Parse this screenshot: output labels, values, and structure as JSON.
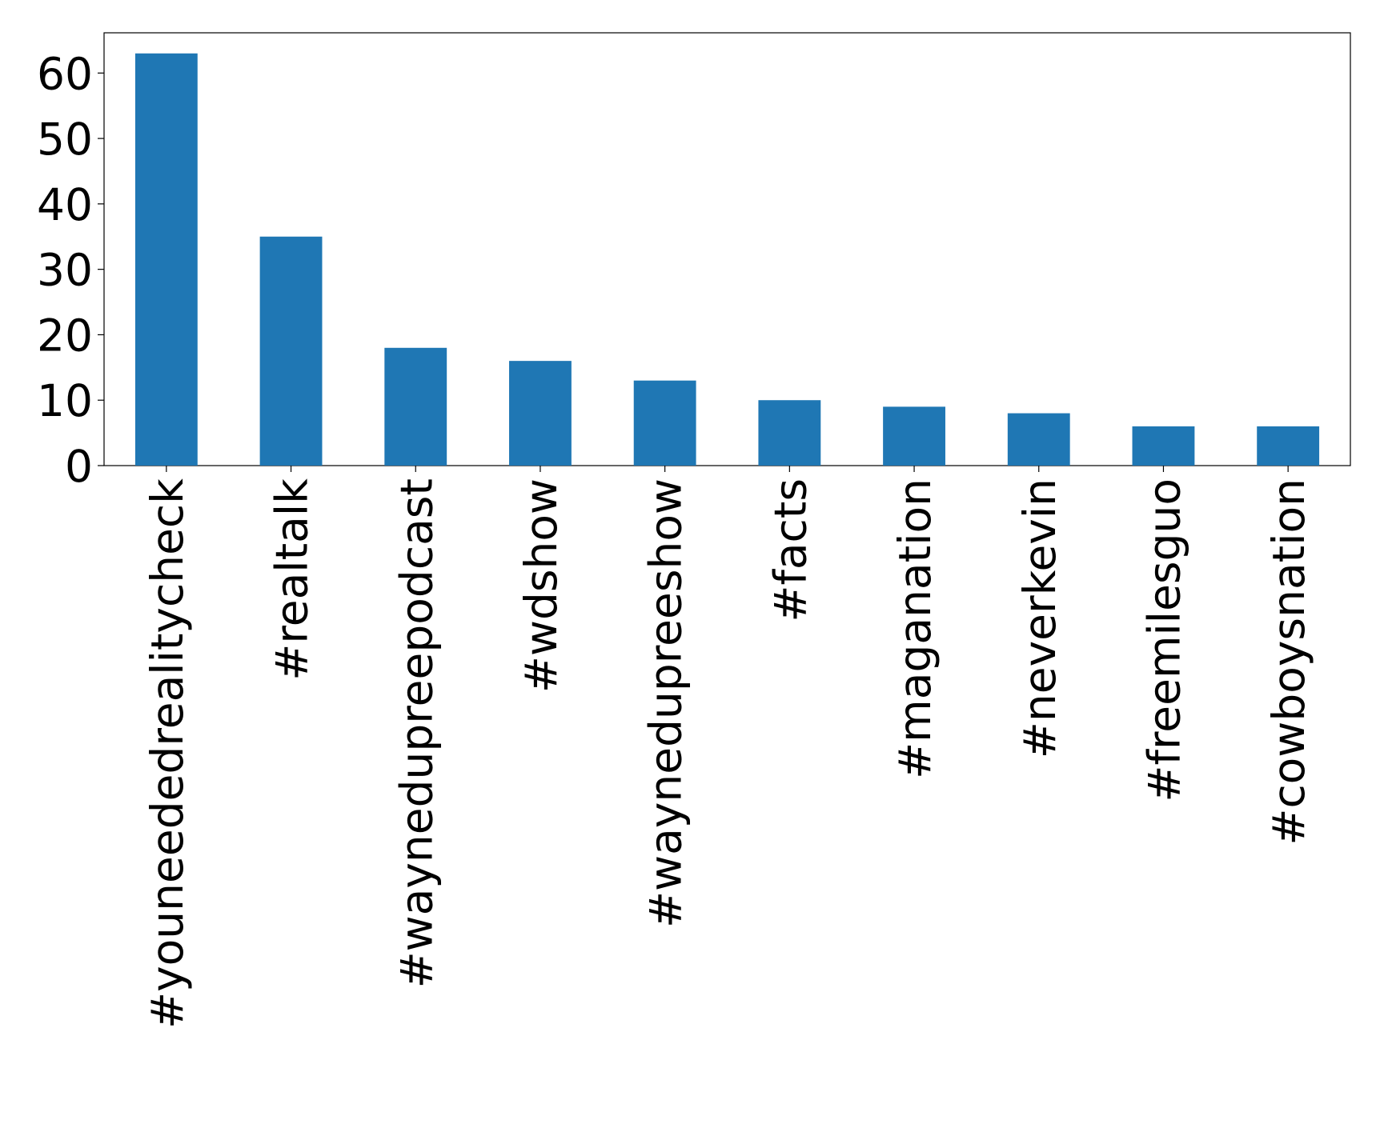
{
  "chart_data": {
    "type": "bar",
    "categories": [
      "#youneededrealitycheck",
      "#realtalk",
      "#waynedupreepodcast",
      "#wdshow",
      "#waynedupreeshow",
      "#facts",
      "#maganation",
      "#neverkevin",
      "#freemilesguo",
      "#cowboysnation"
    ],
    "values": [
      63,
      35,
      18,
      16,
      13,
      10,
      9,
      8,
      6,
      6
    ],
    "color": "#1f77b4",
    "ylim": [
      0,
      66.15
    ],
    "yticks": [
      0,
      10,
      20,
      30,
      40,
      50,
      60
    ],
    "grid": false
  }
}
